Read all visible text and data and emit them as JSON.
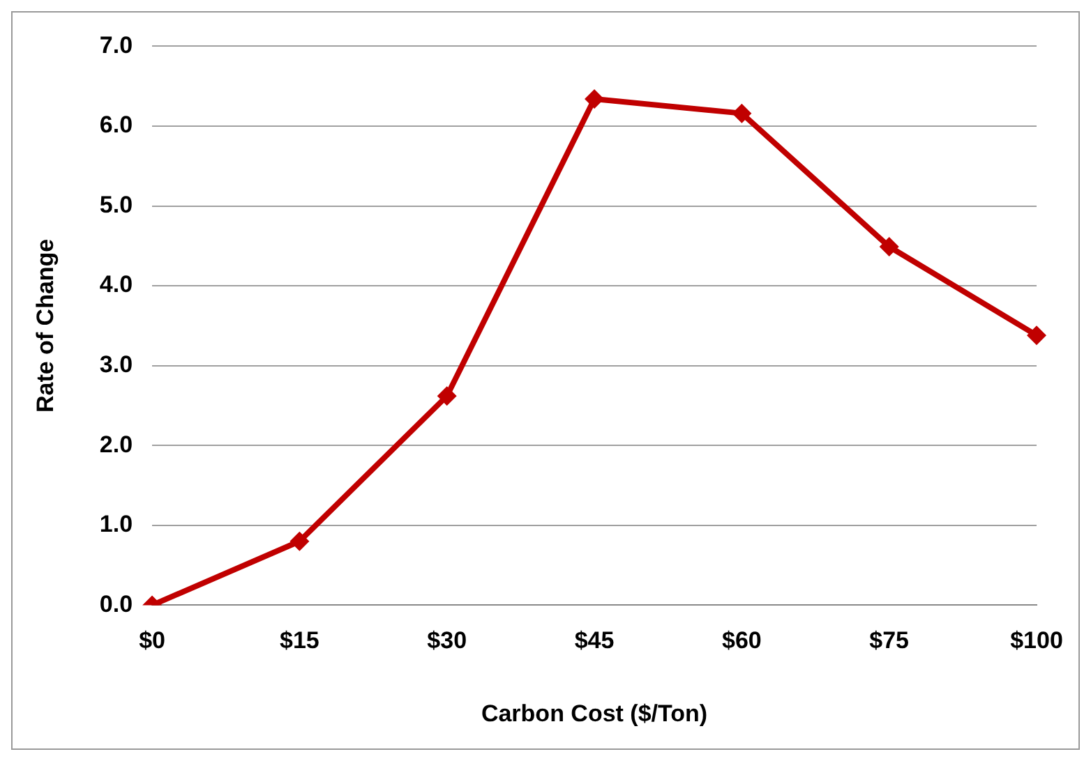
{
  "chart_data": {
    "type": "line",
    "xlabel": "Carbon Cost ($/Ton)",
    "ylabel": "Rate of Change",
    "categories": [
      "$0",
      "$15",
      "$30",
      "$45",
      "$60",
      "$75",
      "$100"
    ],
    "series": [
      {
        "color": "#c00000",
        "values": [
          0,
          0.8,
          2.62,
          6.34,
          6.16,
          4.49,
          3.38
        ]
      }
    ],
    "ylim": [
      0,
      7
    ],
    "yticks": [
      {
        "value": 0,
        "label": "0.0"
      },
      {
        "value": 1,
        "label": "1.0"
      },
      {
        "value": 2,
        "label": "2.0"
      },
      {
        "value": 3,
        "label": "3.0"
      },
      {
        "value": 4,
        "label": "4.0"
      },
      {
        "value": 5,
        "label": "5.0"
      },
      {
        "value": 6,
        "label": "6.0"
      },
      {
        "value": 7,
        "label": "7.0"
      }
    ],
    "grid": "y",
    "marker": "diamond",
    "line_style": "solid",
    "legend": false
  }
}
